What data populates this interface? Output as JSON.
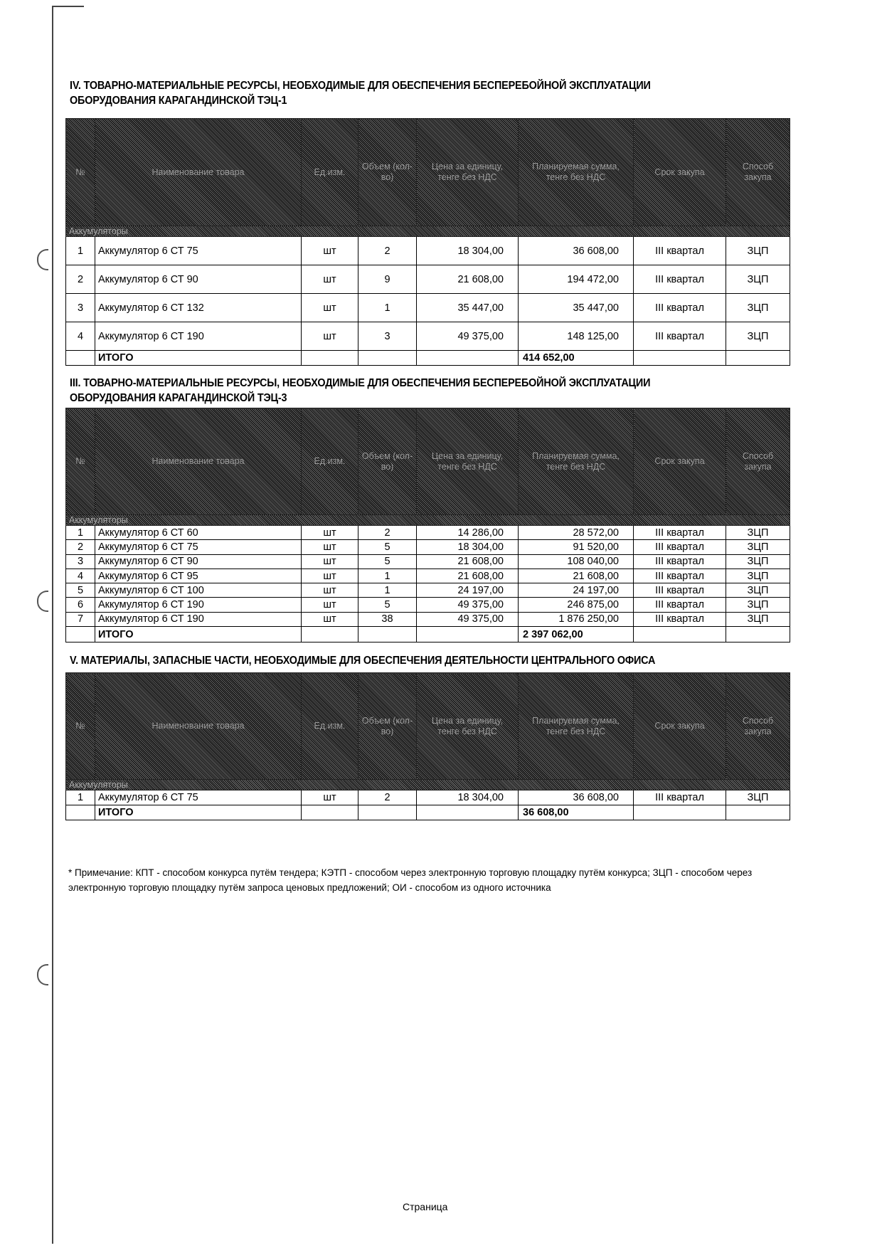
{
  "columns": [
    "№",
    "Наименование товара",
    "Ед.изм.",
    "Объем (кол-во)",
    "Цена за единицу, тенге без НДС",
    "Планируемая сумма, тенге без НДС",
    "Срок закупа",
    "Способ закупа"
  ],
  "sections": [
    {
      "title_line1": "IV. ТОВАРНО-МАТЕРИАЛЬНЫЕ РЕСУРСЫ, НЕОБХОДИМЫЕ ДЛЯ ОБЕСПЕЧЕНИЯ БЕСПЕРЕБОЙНОЙ ЭКСПЛУАТАЦИИ",
      "title_line2": "ОБОРУДОВАНИЯ КАРАГАНДИНСКОЙ ТЭЦ-1",
      "group": "Аккумуляторы",
      "rows": [
        [
          "1",
          "Аккумулятор 6 СТ 75",
          "шт",
          "2",
          "18 304,00",
          "36 608,00",
          "III квартал",
          "ЗЦП"
        ],
        [
          "2",
          "Аккумулятор 6 СТ 90",
          "шт",
          "9",
          "21 608,00",
          "194 472,00",
          "III квартал",
          "ЗЦП"
        ],
        [
          "3",
          "Аккумулятор 6 СТ 132",
          "шт",
          "1",
          "35 447,00",
          "35 447,00",
          "III квартал",
          "ЗЦП"
        ],
        [
          "4",
          "Аккумулятор 6 СТ 190",
          "шт",
          "3",
          "49 375,00",
          "148 125,00",
          "III квартал",
          "ЗЦП"
        ]
      ],
      "total_label": "ИТОГО",
      "total": "414 652,00"
    },
    {
      "title_line1": "III. ТОВАРНО-МАТЕРИАЛЬНЫЕ РЕСУРСЫ, НЕОБХОДИМЫЕ ДЛЯ ОБЕСПЕЧЕНИЯ БЕСПЕРЕБОЙНОЙ ЭКСПЛУАТАЦИИ",
      "title_line2": "ОБОРУДОВАНИЯ КАРАГАНДИНСКОЙ ТЭЦ-3",
      "group": "Аккумуляторы",
      "rows": [
        [
          "1",
          "Аккумулятор 6 СТ 60",
          "шт",
          "2",
          "14 286,00",
          "28 572,00",
          "III квартал",
          "ЗЦП"
        ],
        [
          "2",
          "Аккумулятор 6 СТ 75",
          "шт",
          "5",
          "18 304,00",
          "91 520,00",
          "III квартал",
          "ЗЦП"
        ],
        [
          "3",
          "Аккумулятор 6 СТ 90",
          "шт",
          "5",
          "21 608,00",
          "108 040,00",
          "III квартал",
          "ЗЦП"
        ],
        [
          "4",
          "Аккумулятор 6 СТ 95",
          "шт",
          "1",
          "21 608,00",
          "21 608,00",
          "III квартал",
          "ЗЦП"
        ],
        [
          "5",
          "Аккумулятор 6 СТ 100",
          "шт",
          "1",
          "24 197,00",
          "24 197,00",
          "III квартал",
          "ЗЦП"
        ],
        [
          "6",
          "Аккумулятор 6 СТ 190",
          "шт",
          "5",
          "49 375,00",
          "246 875,00",
          "III квартал",
          "ЗЦП"
        ],
        [
          "7",
          "Аккумулятор 6 СТ 190",
          "шт",
          "38",
          "49 375,00",
          "1 876 250,00",
          "III квартал",
          "ЗЦП"
        ]
      ],
      "total_label": "ИТОГО",
      "total": "2 397 062,00"
    },
    {
      "title_line1": "V. МАТЕРИАЛЫ, ЗАПАСНЫЕ ЧАСТИ, НЕОБХОДИМЫЕ ДЛЯ ОБЕСПЕЧЕНИЯ ДЕЯТЕЛЬНОСТИ ЦЕНТРАЛЬНОГО ОФИСА",
      "title_line2": "",
      "group": "Аккумуляторы",
      "rows": [
        [
          "1",
          "Аккумулятор 6 СТ 75",
          "шт",
          "2",
          "18 304,00",
          "36 608,00",
          "III квартал",
          "ЗЦП"
        ]
      ],
      "total_label": "ИТОГО",
      "total": "36 608,00"
    }
  ],
  "note": "* Примечание: КПТ - способом конкурса путём тендера; КЭТП - способом через электронную торговую площадку путём конкурса; ЗЦП - способом через электронную торговую площадку путём запроса ценовых предложений; ОИ - способом из одного источника",
  "footer": "Страница"
}
